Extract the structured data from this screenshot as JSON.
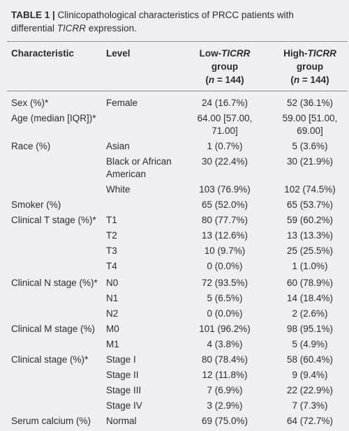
{
  "caption": {
    "label": "TABLE 1 |",
    "text_a": " Clinicopathological characteristics of PRCC patients with differential ",
    "gene": "TICRR",
    "text_b": " expression."
  },
  "header": {
    "characteristic": "Characteristic",
    "level": "Level",
    "low": {
      "line1_prefix": "Low-",
      "gene": "TICRR",
      "line2": "group",
      "n_open": "(",
      "n_var": "n",
      "n_rest": " = 144)"
    },
    "high": {
      "line1_prefix": "High-",
      "gene": "TICRR",
      "line2": "group",
      "n_open": "(",
      "n_var": "n",
      "n_rest": " = 144)"
    }
  },
  "rows": [
    {
      "char": "Sex (%)*",
      "level": "Female",
      "low": "24 (16.7%)",
      "high": "52 (36.1%)"
    },
    {
      "char": "Age (median [IQR])*",
      "level": "",
      "low": "64.00 [57.00,",
      "low2": "71.00]",
      "high": "59.00 [51.00,",
      "high2": "69.00]"
    },
    {
      "char": "Race (%)",
      "level": "Asian",
      "low": "1 (0.7%)",
      "high": "5 (3.6%)"
    },
    {
      "char": "",
      "level": "Black or African",
      "level2": "American",
      "low": "30 (22.4%)",
      "high": "30 (21.9%)"
    },
    {
      "char": "",
      "level": "White",
      "low": "103 (76.9%)",
      "high": "102 (74.5%)"
    },
    {
      "char": "Smoker (%)",
      "level": "",
      "low": "65 (52.0%)",
      "high": "65 (53.7%)"
    },
    {
      "char": "Clinical T stage (%)*",
      "level": "T1",
      "low": "80 (77.7%)",
      "high": "59 (60.2%)"
    },
    {
      "char": "",
      "level": "T2",
      "low": "13 (12.6%)",
      "high": "13 (13.3%)"
    },
    {
      "char": "",
      "level": "T3",
      "low": "10 (9.7%)",
      "high": "25 (25.5%)"
    },
    {
      "char": "",
      "level": "T4",
      "low": "0 (0.0%)",
      "high": "1 (1.0%)"
    },
    {
      "char": "Clinical N stage (%)*",
      "level": "N0",
      "low": "72 (93.5%)",
      "high": "60 (78.9%)"
    },
    {
      "char": "",
      "level": "N1",
      "low": "5 (6.5%)",
      "high": "14 (18.4%)"
    },
    {
      "char": "",
      "level": "N2",
      "low": "0 (0.0%)",
      "high": "2 (2.6%)"
    },
    {
      "char": "Clinical M stage (%)",
      "level": "M0",
      "low": "101 (96.2%)",
      "high": "98 (95.1%)"
    },
    {
      "char": "",
      "level": "M1",
      "low": "4 (3.8%)",
      "high": "5 (4.9%)"
    },
    {
      "char": "Clinical stage (%)*",
      "level": "Stage I",
      "low": "80 (78.4%)",
      "high": "58 (60.4%)"
    },
    {
      "char": "",
      "level": "Stage II",
      "low": "12 (11.8%)",
      "high": "9 (9.4%)"
    },
    {
      "char": "",
      "level": "Stage III",
      "low": "7 (6.9%)",
      "high": "22 (22.9%)"
    },
    {
      "char": "",
      "level": "Stage IV",
      "low": "3 (2.9%)",
      "high": "7 (7.3%)"
    },
    {
      "char": "Serum calcium (%)",
      "level": "Normal",
      "low": "69 (75.0%)",
      "high": "64 (72.7%)"
    }
  ]
}
